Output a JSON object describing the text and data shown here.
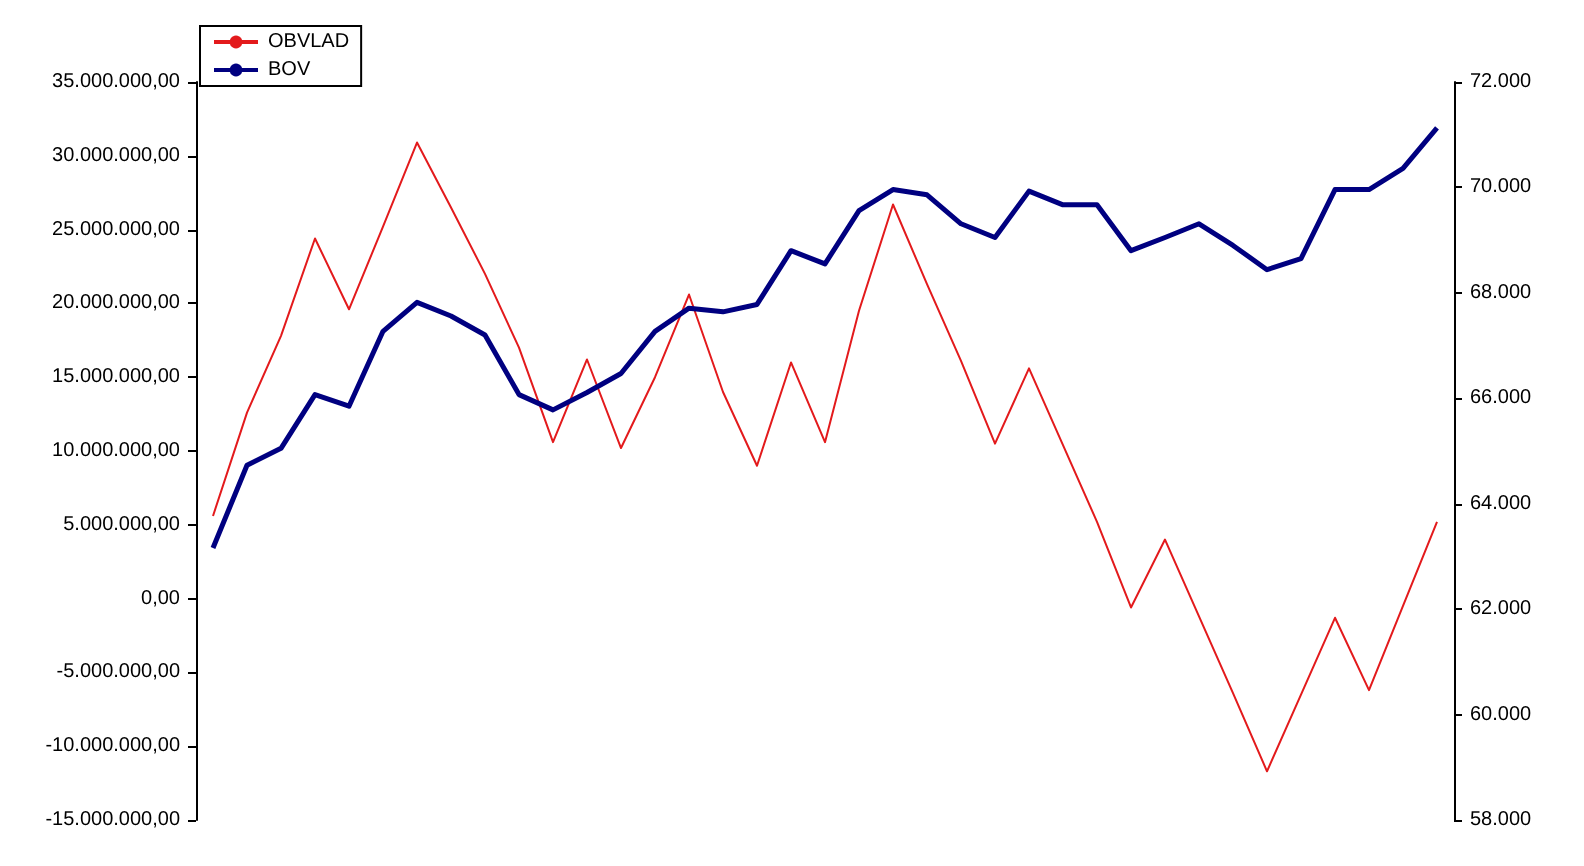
{
  "chart_data": {
    "type": "line",
    "categories": [
      null,
      null,
      null,
      null,
      null,
      null,
      null,
      null,
      null,
      null,
      null,
      null,
      null,
      null,
      null,
      null,
      null,
      null,
      null,
      null,
      null,
      null,
      null,
      null,
      null,
      null,
      null,
      null,
      null,
      null,
      null,
      null,
      null,
      null,
      null,
      null,
      null
    ],
    "series": [
      {
        "name": "OBVLAD",
        "color": "#e31a1c",
        "values": [
          5600000,
          12600000,
          17800000,
          24400000,
          19600000,
          25200000,
          30900000,
          26500000,
          22000000,
          17000000,
          10600000,
          16200000,
          10200000,
          15000000,
          20600000,
          14000000,
          9000000,
          16000000,
          10600000,
          19500000,
          26700000,
          21300000,
          16100000,
          10500000,
          15600000,
          10400000,
          5200000,
          -600000,
          4000000,
          -1200000,
          -6400000,
          -11700000,
          -6500000,
          -1300000,
          -6200000,
          -500000,
          5200000
        ]
      },
      {
        "name": "BOV",
        "color": "#000080",
        "axis": "y2",
        "values": [
          63160,
          64730,
          65050,
          66070,
          65850,
          67270,
          67820,
          67560,
          67200,
          66070,
          65780,
          66110,
          66470,
          67270,
          67710,
          67640,
          67780,
          68800,
          68550,
          69560,
          69960,
          69860,
          69310,
          69050,
          69930,
          69670,
          69670,
          68800,
          69050,
          69310,
          68900,
          68440,
          68650,
          69960,
          69960,
          70360,
          71130
        ]
      }
    ],
    "ylim": [
      -15000000,
      35000000
    ],
    "yticks": [
      {
        "value": -15000000,
        "label": "-15.000.000,00"
      },
      {
        "value": -10000000,
        "label": "-10.000.000,00"
      },
      {
        "value": -5000000,
        "label": "-5.000.000,00"
      },
      {
        "value": 0,
        "label": "0,00"
      },
      {
        "value": 5000000,
        "label": "5.000.000,00"
      },
      {
        "value": 10000000,
        "label": "10.000.000,00"
      },
      {
        "value": 15000000,
        "label": "15.000.000,00"
      },
      {
        "value": 20000000,
        "label": "20.000.000,00"
      },
      {
        "value": 25000000,
        "label": "25.000.000,00"
      },
      {
        "value": 30000000,
        "label": "30.000.000,00"
      },
      {
        "value": 35000000,
        "label": "35.000.000,00"
      }
    ],
    "y2lim": [
      58000,
      72000
    ],
    "y2ticks": [
      {
        "value": 58000,
        "label": "58.000"
      },
      {
        "value": 60000,
        "label": "60.000"
      },
      {
        "value": 62000,
        "label": "62.000"
      },
      {
        "value": 64000,
        "label": "64.000"
      },
      {
        "value": 66000,
        "label": "66.000"
      },
      {
        "value": 68000,
        "label": "68.000"
      },
      {
        "value": 70000,
        "label": "70.000"
      },
      {
        "value": 72000,
        "label": "72.000"
      }
    ],
    "legend": "top left",
    "grid": false,
    "marker": "none",
    "line_style": "solid"
  }
}
